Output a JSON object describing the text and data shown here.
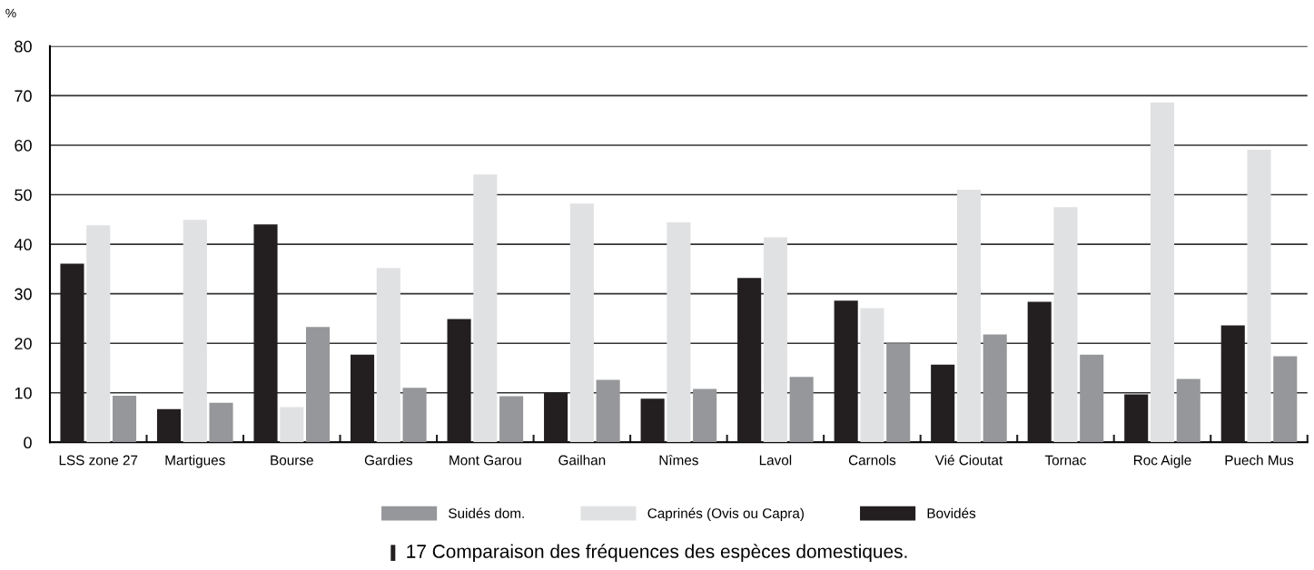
{
  "chart_data": {
    "type": "bar",
    "title": "17 Comparaison des fréquences des espèces domestiques.",
    "ylabel": "%",
    "categories": [
      "LSS zone 27",
      "Martigues",
      "Bourse",
      "Gardies",
      "Mont Garou",
      "Gailhan",
      "Nîmes",
      "Lavol",
      "Carnols",
      "Vié Cioutat",
      "Tornac",
      "Roc Aigle",
      "Puech Mus"
    ],
    "series": [
      {
        "name": "Bovidés",
        "color": "#231f20",
        "values": [
          36.1,
          6.7,
          44.0,
          17.7,
          24.9,
          10.0,
          8.8,
          33.2,
          28.6,
          15.7,
          28.4,
          9.7,
          23.6
        ]
      },
      {
        "name": "Caprinés (Ovis ou Capra)",
        "color": "#e0e1e3",
        "values": [
          43.8,
          44.9,
          7.1,
          35.2,
          54.1,
          48.2,
          44.4,
          41.4,
          27.1,
          51.0,
          47.5,
          68.6,
          59.1
        ]
      },
      {
        "name": "Suidés dom.",
        "color": "#96979a",
        "values": [
          9.4,
          8.0,
          23.3,
          11.0,
          9.3,
          12.6,
          10.8,
          13.2,
          20.0,
          21.8,
          17.7,
          12.8,
          17.4
        ]
      }
    ],
    "ylim": [
      0,
      80
    ],
    "yticks": [
      0,
      10,
      20,
      30,
      40,
      50,
      60,
      70,
      80
    ],
    "grid": "y",
    "legend": "bottom"
  }
}
